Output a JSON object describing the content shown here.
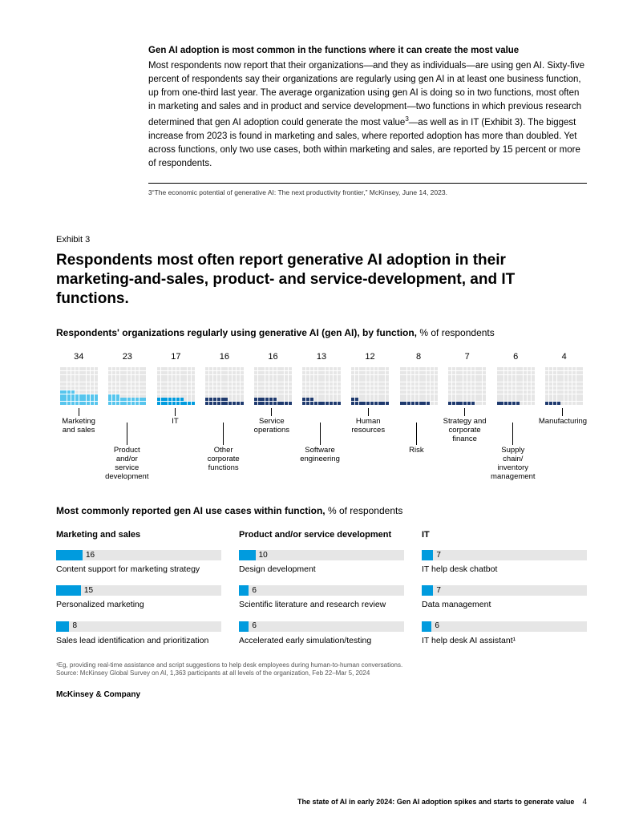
{
  "intro": {
    "heading": "Gen AI adoption is most common in the functions where it can create the most value",
    "body_before_sup": "Most respondents now report that their organizations—and they as individuals—are using gen AI. Sixty-five percent of respondents say their organizations are regularly using gen AI in at least one business function, up from one-third last year. The average organization using gen AI is doing so in two functions, most often in marketing and sales and in product and service development—two functions in which previous research determined that gen AI adoption could generate the most value",
    "sup": "3",
    "body_after_sup": "—as well as in IT (Exhibit 3). The biggest increase from 2023 is found in marketing and sales, where reported adoption has more than doubled. Yet across functions, only two use cases, both within marketing and sales, are reported by 15 percent or more of respondents."
  },
  "footnote3": "3“The economic potential of generative AI: The next productivity frontier,” McKinsey, June 14, 2023.",
  "exhibit": {
    "label": "Exhibit 3",
    "title": "Respondents most often report generative AI adoption in their marketing-and-sales, product- and service-development, and IT functions.",
    "subhead_bold": "Respondents' organizations regularly using generative AI (gen AI), by function,",
    "subhead_rest": " % of respondents"
  },
  "waffle": {
    "colors": {
      "light": "#57c5ed",
      "mid": "#009bde",
      "dark": "#1f3a6e",
      "grid": "#e6e6e6"
    },
    "items": [
      {
        "label": "Marketing and sales",
        "value": 34,
        "color": "light",
        "row": "top"
      },
      {
        "label": "Product and/or service development",
        "value": 23,
        "color": "light",
        "row": "bot"
      },
      {
        "label": "IT",
        "value": 17,
        "color": "mid",
        "row": "top"
      },
      {
        "label": "Other corporate functions",
        "value": 16,
        "color": "dark",
        "row": "bot"
      },
      {
        "label": "Service operations",
        "value": 16,
        "color": "dark",
        "row": "top"
      },
      {
        "label": "Software engineering",
        "value": 13,
        "color": "dark",
        "row": "bot"
      },
      {
        "label": "Human resources",
        "value": 12,
        "color": "dark",
        "row": "top"
      },
      {
        "label": "Risk",
        "value": 8,
        "color": "dark",
        "row": "bot"
      },
      {
        "label": "Strategy and corporate finance",
        "value": 7,
        "color": "dark",
        "row": "top"
      },
      {
        "label": "Supply chain/ inventory management",
        "value": 6,
        "color": "dark",
        "row": "bot"
      },
      {
        "label": "Manufacturing",
        "value": 4,
        "color": "dark",
        "row": "top"
      }
    ]
  },
  "usecases": {
    "subhead_bold": "Most commonly reported gen AI use cases within function,",
    "subhead_rest": " % of respondents",
    "bar_fill_color": "#009bde",
    "bar_track_color": "#e6e6e6",
    "bar_max": 100,
    "columns": [
      {
        "title": "Marketing and sales",
        "rows": [
          {
            "value": 16,
            "label": "Content support for marketing strategy"
          },
          {
            "value": 15,
            "label": "Personalized marketing"
          },
          {
            "value": 8,
            "label": "Sales lead identification and prioritization"
          }
        ]
      },
      {
        "title": "Product and/or service development",
        "rows": [
          {
            "value": 10,
            "label": "Design development"
          },
          {
            "value": 6,
            "label": "Scientific literature and research review"
          },
          {
            "value": 6,
            "label": "Accelerated early simulation/testing"
          }
        ]
      },
      {
        "title": "IT",
        "rows": [
          {
            "value": 7,
            "label": "IT help desk chatbot"
          },
          {
            "value": 7,
            "label": "Data management"
          },
          {
            "value": 6,
            "label": "IT help desk AI assistant¹"
          }
        ]
      }
    ]
  },
  "fineprint": {
    "line1": "¹Eg, providing real-time assistance and script suggestions to help desk employees during human-to-human conversations.",
    "line2": "Source: McKinsey Global Survey on AI, 1,363 participants at all levels of the organization, Feb 22–Mar 5, 2024"
  },
  "brand": "McKinsey & Company",
  "footer": {
    "title": "The state of AI in early 2024: Gen AI adoption spikes and starts to generate value",
    "page": "4"
  }
}
